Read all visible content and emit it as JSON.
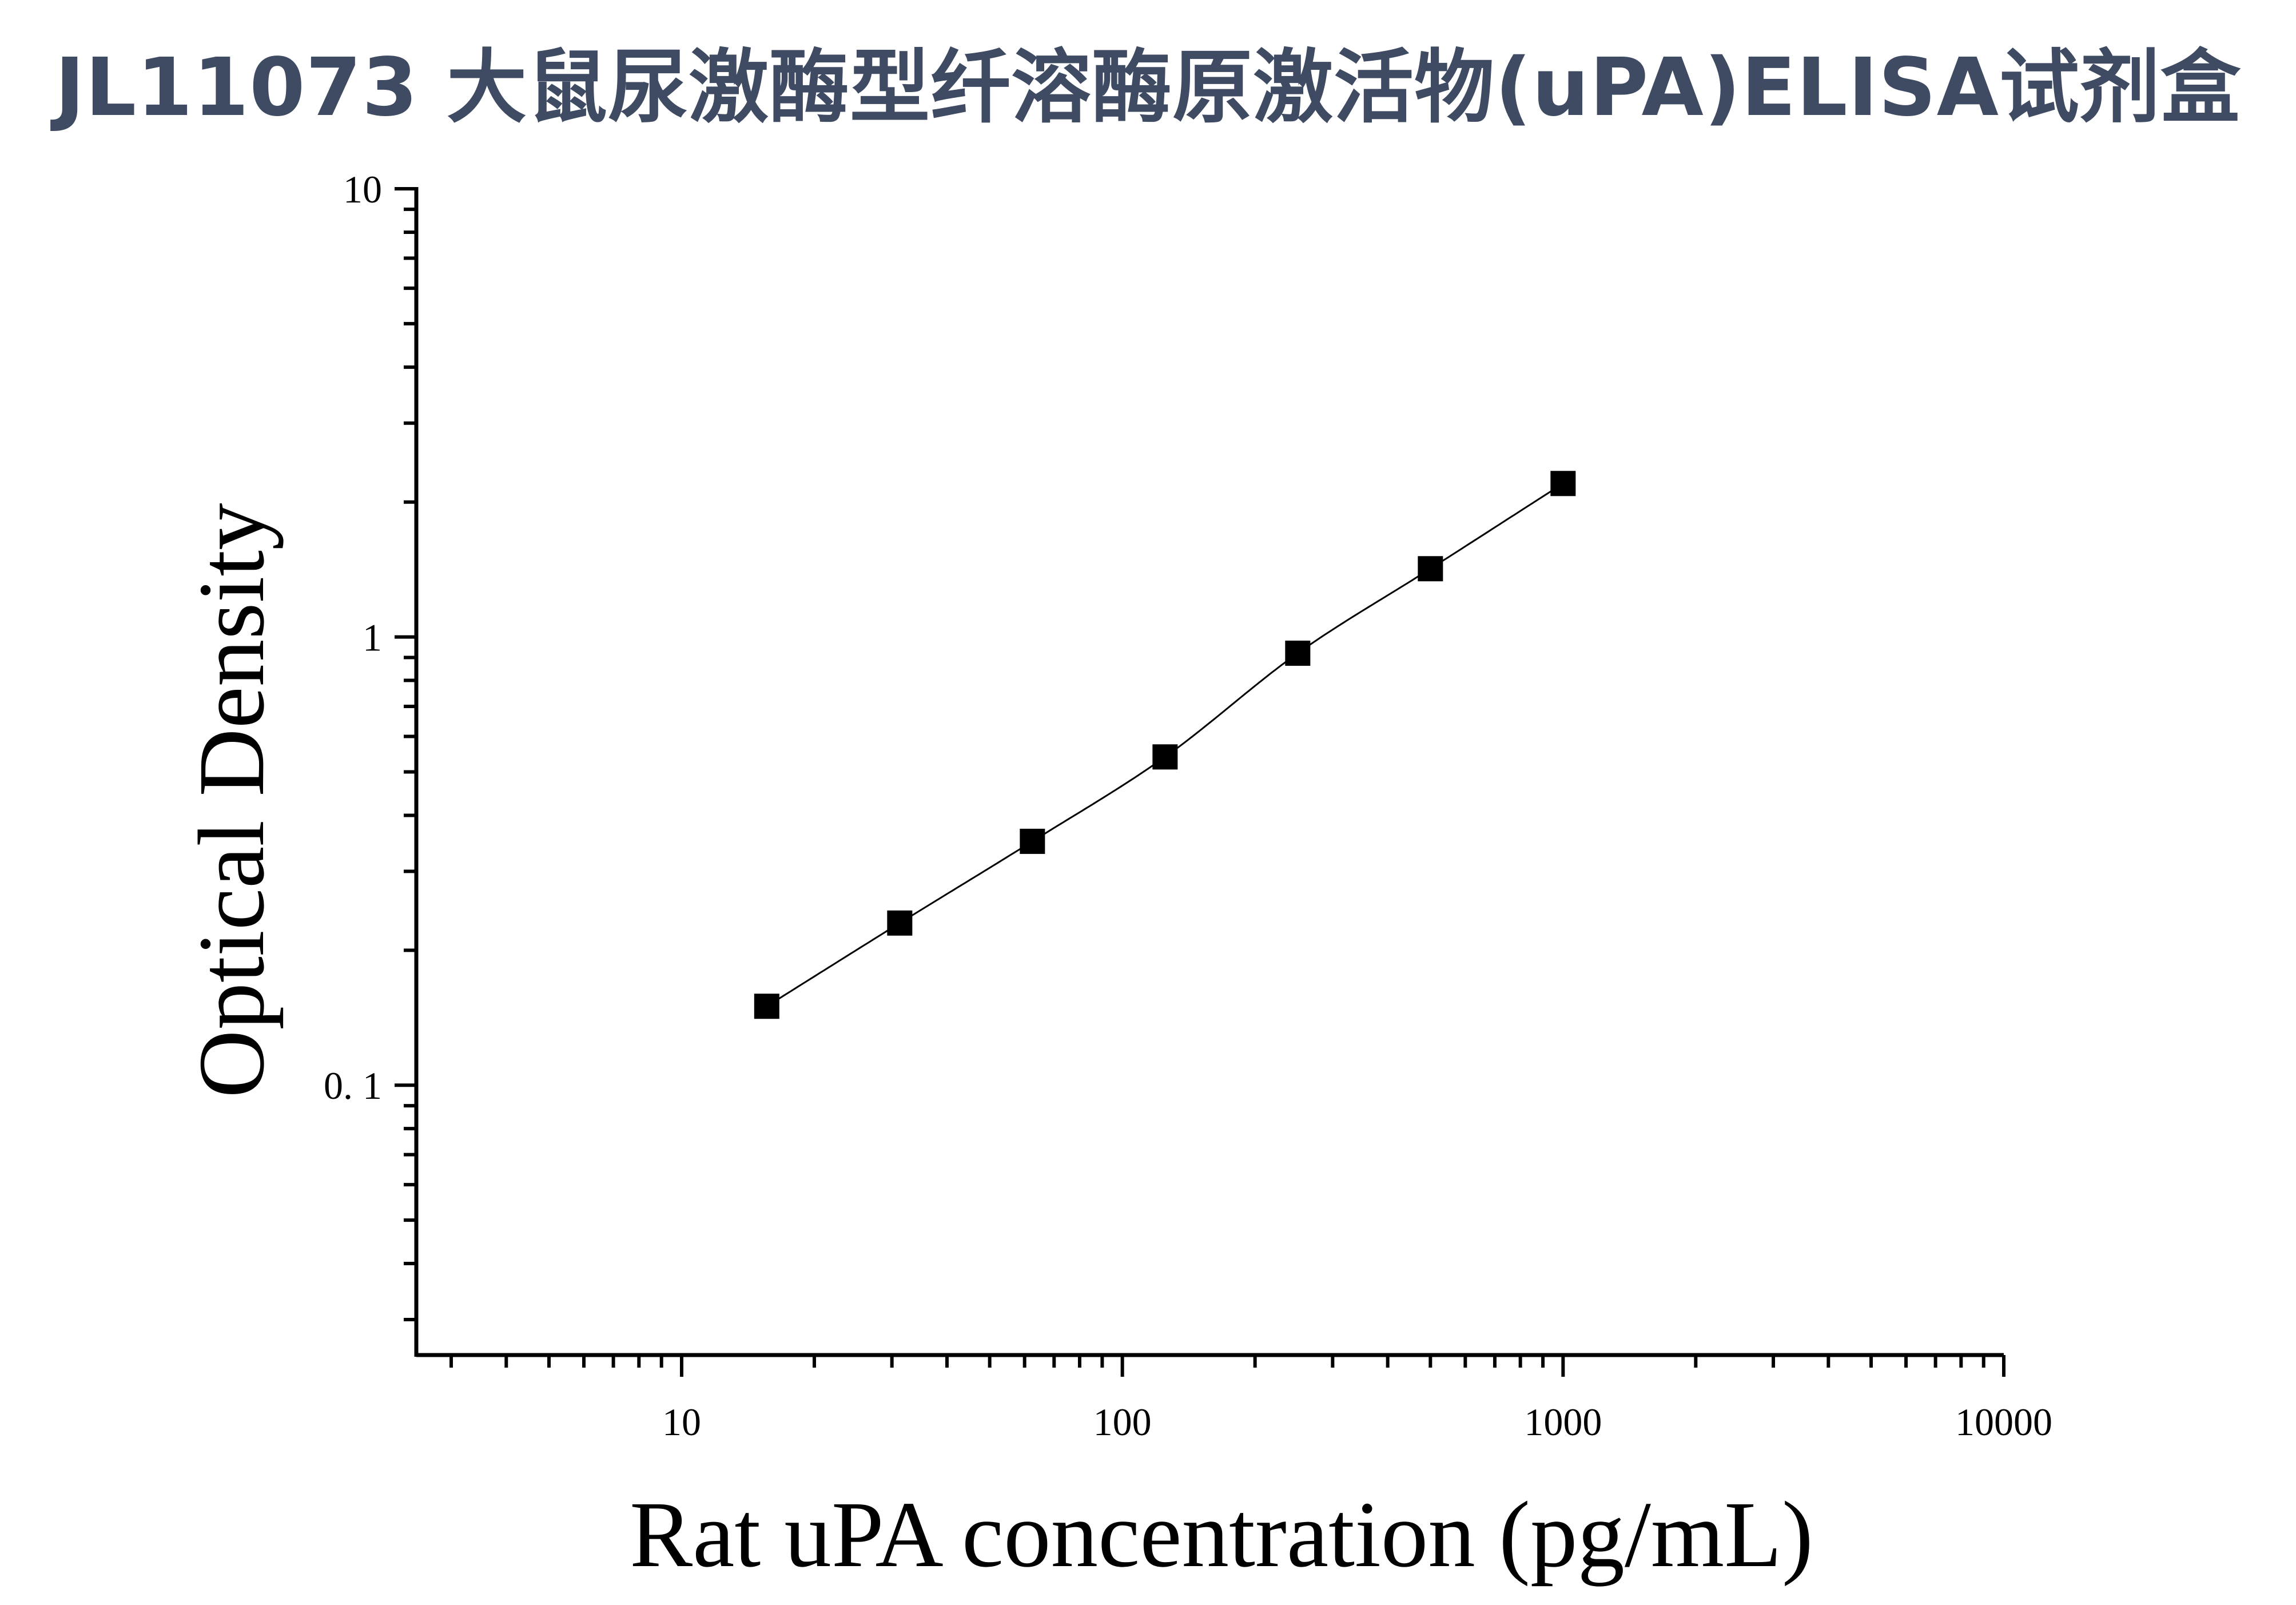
{
  "title": "JL11073 大鼠尿激酶型纤溶酶原激活物(uPA)ELISA试剂盒",
  "chart_data": {
    "type": "scatter",
    "xlabel": "Rat uPA concentration (pg/mL)",
    "ylabel": "Optical Density",
    "xscale": "log",
    "yscale": "log",
    "xlim": [
      2.5,
      10000
    ],
    "ylim": [
      0.025,
      10
    ],
    "xticks": [
      {
        "value": 10,
        "label": "10"
      },
      {
        "value": 100,
        "label": "100"
      },
      {
        "value": 1000,
        "label": "1000"
      },
      {
        "value": 10000,
        "label": "10000"
      }
    ],
    "yticks": [
      {
        "value": 0.1,
        "label": "0. 1"
      },
      {
        "value": 1,
        "label": "1"
      },
      {
        "value": 10,
        "label": "10"
      }
    ],
    "grid": false,
    "marker": "square",
    "fit_line": true,
    "series": [
      {
        "x": [
          15.6,
          31.25,
          62.5,
          125,
          250,
          500,
          1000
        ],
        "y": [
          0.15,
          0.23,
          0.35,
          0.54,
          0.92,
          1.42,
          2.2
        ]
      }
    ]
  }
}
